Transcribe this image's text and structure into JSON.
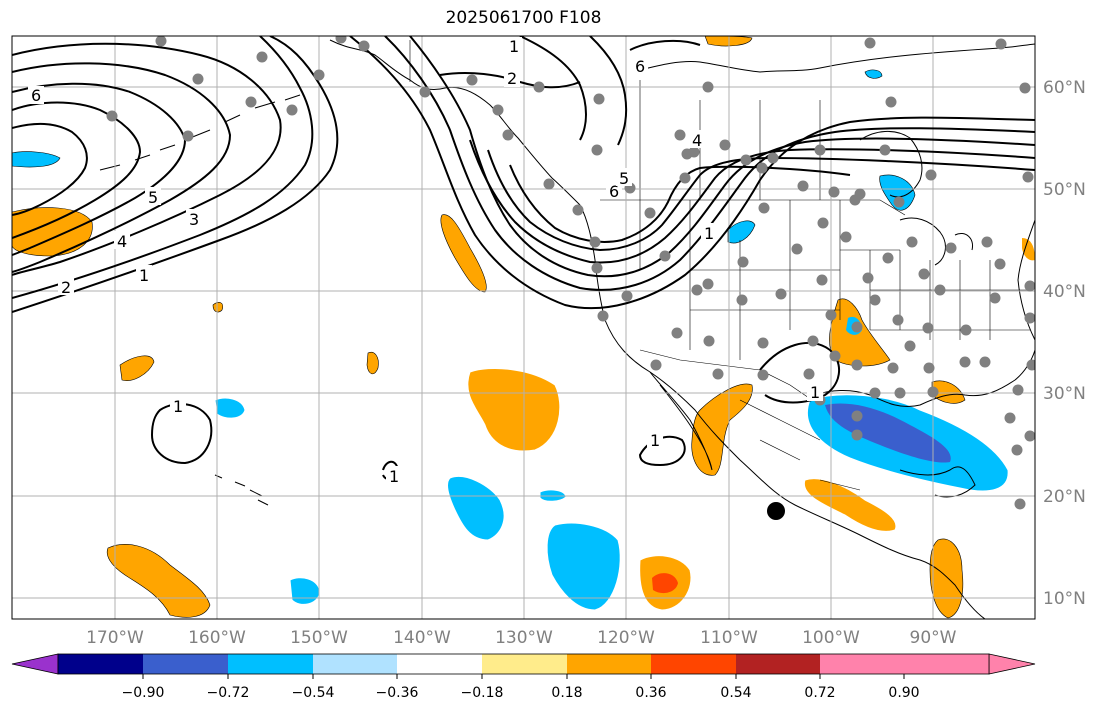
{
  "title": "2025061700 F108",
  "longitude_labels": [
    "170°W",
    "160°W",
    "150°W",
    "140°W",
    "130°W",
    "120°W",
    "110°W",
    "100°W",
    "90°W"
  ],
  "latitude_labels": [
    "60°N",
    "50°N",
    "40°N",
    "30°N",
    "20°N",
    "10°N"
  ],
  "colorbar": {
    "tick_labels": [
      "−0.90",
      "−0.72",
      "−0.54",
      "−0.36",
      "−0.18",
      "0.18",
      "0.36",
      "0.54",
      "0.72",
      "0.90"
    ],
    "colors": [
      "#9a32cd",
      "#00008b",
      "#3a5fcd",
      "#00bfff",
      "#b0e2ff",
      "#ffffff",
      "#ffec8b",
      "#ffa500",
      "#ff4500",
      "#b22222",
      "#ff82ab"
    ]
  },
  "contour_labels": [
    "6",
    "2",
    "1",
    "5",
    "3",
    "4",
    "1",
    "2",
    "1",
    "6",
    "4",
    "5",
    "6",
    "1",
    "1",
    "1",
    "1"
  ],
  "colors": {
    "land_outline": "#000000",
    "grid": "#b0b0b0",
    "station_dot": "#808080",
    "marker": "#000000"
  }
}
